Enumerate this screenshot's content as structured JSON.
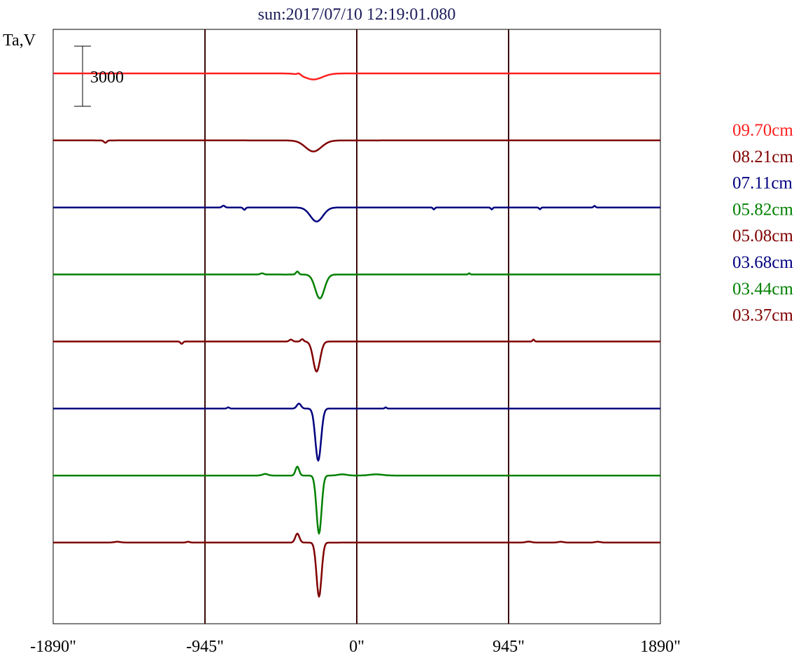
{
  "chart_data": {
    "type": "line",
    "title": "sun:2017/07/10 12:19:01.080",
    "ylabel": "Ta,V",
    "xlabel": "",
    "scale_bar_label": "3000",
    "x_ticks": [
      "-1890\"",
      "-945\"",
      "0\"",
      "945\"",
      "1890\""
    ],
    "x_tick_values": [
      -1890,
      -945,
      0,
      945,
      1890
    ],
    "xlim": [
      -1890,
      1890
    ],
    "vertical_lines_at": [
      -945,
      0,
      945
    ],
    "grid": "vertical lines at -945, 0, 945",
    "legend_position": "right",
    "series": [
      {
        "name": "09.70cm",
        "color": "#ff2020",
        "x": [
          -1890,
          -420,
          -390,
          -360,
          -330,
          -300,
          -270,
          -250,
          -230,
          -1890
        ],
        "dips": [
          {
            "center": -270,
            "width": 80,
            "depth": 300
          },
          {
            "center": -360,
            "width": 15,
            "depth": -80
          }
        ],
        "bumps": []
      },
      {
        "name": "08.21cm",
        "color": "#800000",
        "dips": [
          {
            "center": -270,
            "width": 70,
            "depth": 550
          },
          {
            "center": -1565,
            "width": 12,
            "depth": 120
          }
        ],
        "bumps": []
      },
      {
        "name": "07.11cm",
        "color": "#000080",
        "dips": [
          {
            "center": -250,
            "width": 55,
            "depth": 700
          },
          {
            "center": -700,
            "width": 10,
            "depth": 120
          },
          {
            "center": 480,
            "width": 8,
            "depth": 100
          },
          {
            "center": 840,
            "width": 8,
            "depth": 100
          },
          {
            "center": 1140,
            "width": 8,
            "depth": 90
          }
        ],
        "bumps": [
          {
            "center": -830,
            "width": 12,
            "depth": 90
          },
          {
            "center": 1480,
            "width": 8,
            "depth": 80
          }
        ]
      },
      {
        "name": "05.82cm",
        "color": "#008000",
        "dips": [
          {
            "center": -230,
            "width": 40,
            "depth": 1200
          }
        ],
        "bumps": [
          {
            "center": -370,
            "width": 12,
            "depth": 150
          },
          {
            "center": -590,
            "width": 15,
            "depth": 60
          },
          {
            "center": 700,
            "width": 8,
            "depth": 60
          }
        ]
      },
      {
        "name": "05.08cm",
        "color": "#800000",
        "dips": [
          {
            "center": -250,
            "width": 30,
            "depth": 1500
          },
          {
            "center": -1090,
            "width": 10,
            "depth": 120
          }
        ],
        "bumps": [
          {
            "center": -410,
            "width": 14,
            "depth": 100
          },
          {
            "center": -340,
            "width": 12,
            "depth": 120
          },
          {
            "center": 1100,
            "width": 8,
            "depth": 100
          }
        ]
      },
      {
        "name": "03.68cm",
        "color": "#000080",
        "dips": [
          {
            "center": -240,
            "width": 25,
            "depth": 2600
          }
        ],
        "bumps": [
          {
            "center": -360,
            "width": 18,
            "depth": 250
          },
          {
            "center": -800,
            "width": 10,
            "depth": 60
          },
          {
            "center": 180,
            "width": 8,
            "depth": 60
          }
        ]
      },
      {
        "name": "03.44cm",
        "color": "#008000",
        "dips": [
          {
            "center": -235,
            "width": 22,
            "depth": 2900
          }
        ],
        "bumps": [
          {
            "center": -370,
            "width": 16,
            "depth": 450
          },
          {
            "center": -570,
            "width": 25,
            "depth": 80
          },
          {
            "center": -90,
            "width": 40,
            "depth": 60
          },
          {
            "center": 120,
            "width": 60,
            "depth": 60
          }
        ]
      },
      {
        "name": "03.37cm",
        "color": "#800000",
        "dips": [
          {
            "center": -235,
            "width": 22,
            "depth": 2700
          }
        ],
        "bumps": [
          {
            "center": -370,
            "width": 18,
            "depth": 450
          },
          {
            "center": -1490,
            "width": 30,
            "depth": 40
          },
          {
            "center": -1050,
            "width": 15,
            "depth": 40
          },
          {
            "center": 1070,
            "width": 25,
            "depth": 50
          },
          {
            "center": 1270,
            "width": 25,
            "depth": 40
          },
          {
            "center": 1500,
            "width": 25,
            "depth": 40
          }
        ]
      }
    ]
  }
}
